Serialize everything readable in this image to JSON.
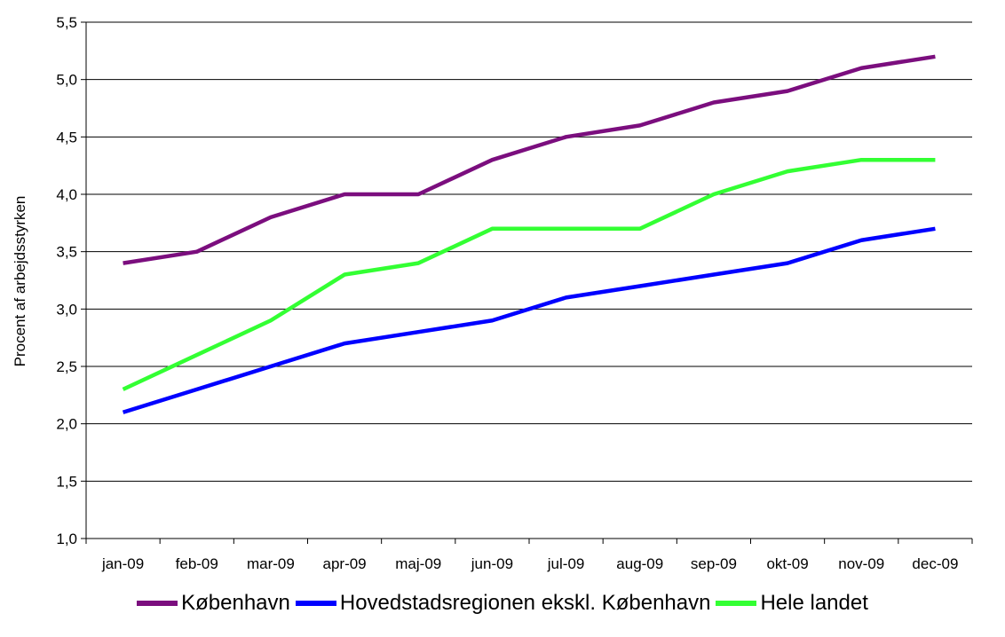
{
  "chart_data": {
    "type": "line",
    "categories": [
      "jan-09",
      "feb-09",
      "mar-09",
      "apr-09",
      "maj-09",
      "jun-09",
      "jul-09",
      "aug-09",
      "sep-09",
      "okt-09",
      "nov-09",
      "dec-09"
    ],
    "series": [
      {
        "name": "København",
        "color": "#7B0E7E",
        "values": [
          3.4,
          3.5,
          3.8,
          4.0,
          4.0,
          4.3,
          4.5,
          4.6,
          4.8,
          4.9,
          5.1,
          5.2
        ]
      },
      {
        "name": "Hovedstadsregionen ekskl. København",
        "color": "#0000FF",
        "values": [
          2.1,
          2.3,
          2.5,
          2.7,
          2.8,
          2.9,
          3.1,
          3.2,
          3.3,
          3.4,
          3.6,
          3.7
        ]
      },
      {
        "name": "Hele landet",
        "color": "#33FF33",
        "values": [
          2.3,
          2.6,
          2.9,
          3.3,
          3.4,
          3.7,
          3.7,
          3.7,
          4.0,
          4.2,
          4.3,
          4.3
        ]
      }
    ],
    "ylabel": "Procent af arbejdsstyrken",
    "ylim": [
      1.0,
      5.5
    ],
    "yticks": [
      "1,0",
      "1,5",
      "2,0",
      "2,5",
      "3,0",
      "3,5",
      "4,0",
      "4,5",
      "5,0",
      "5,5"
    ],
    "grid": true,
    "legend_position": "bottom"
  }
}
